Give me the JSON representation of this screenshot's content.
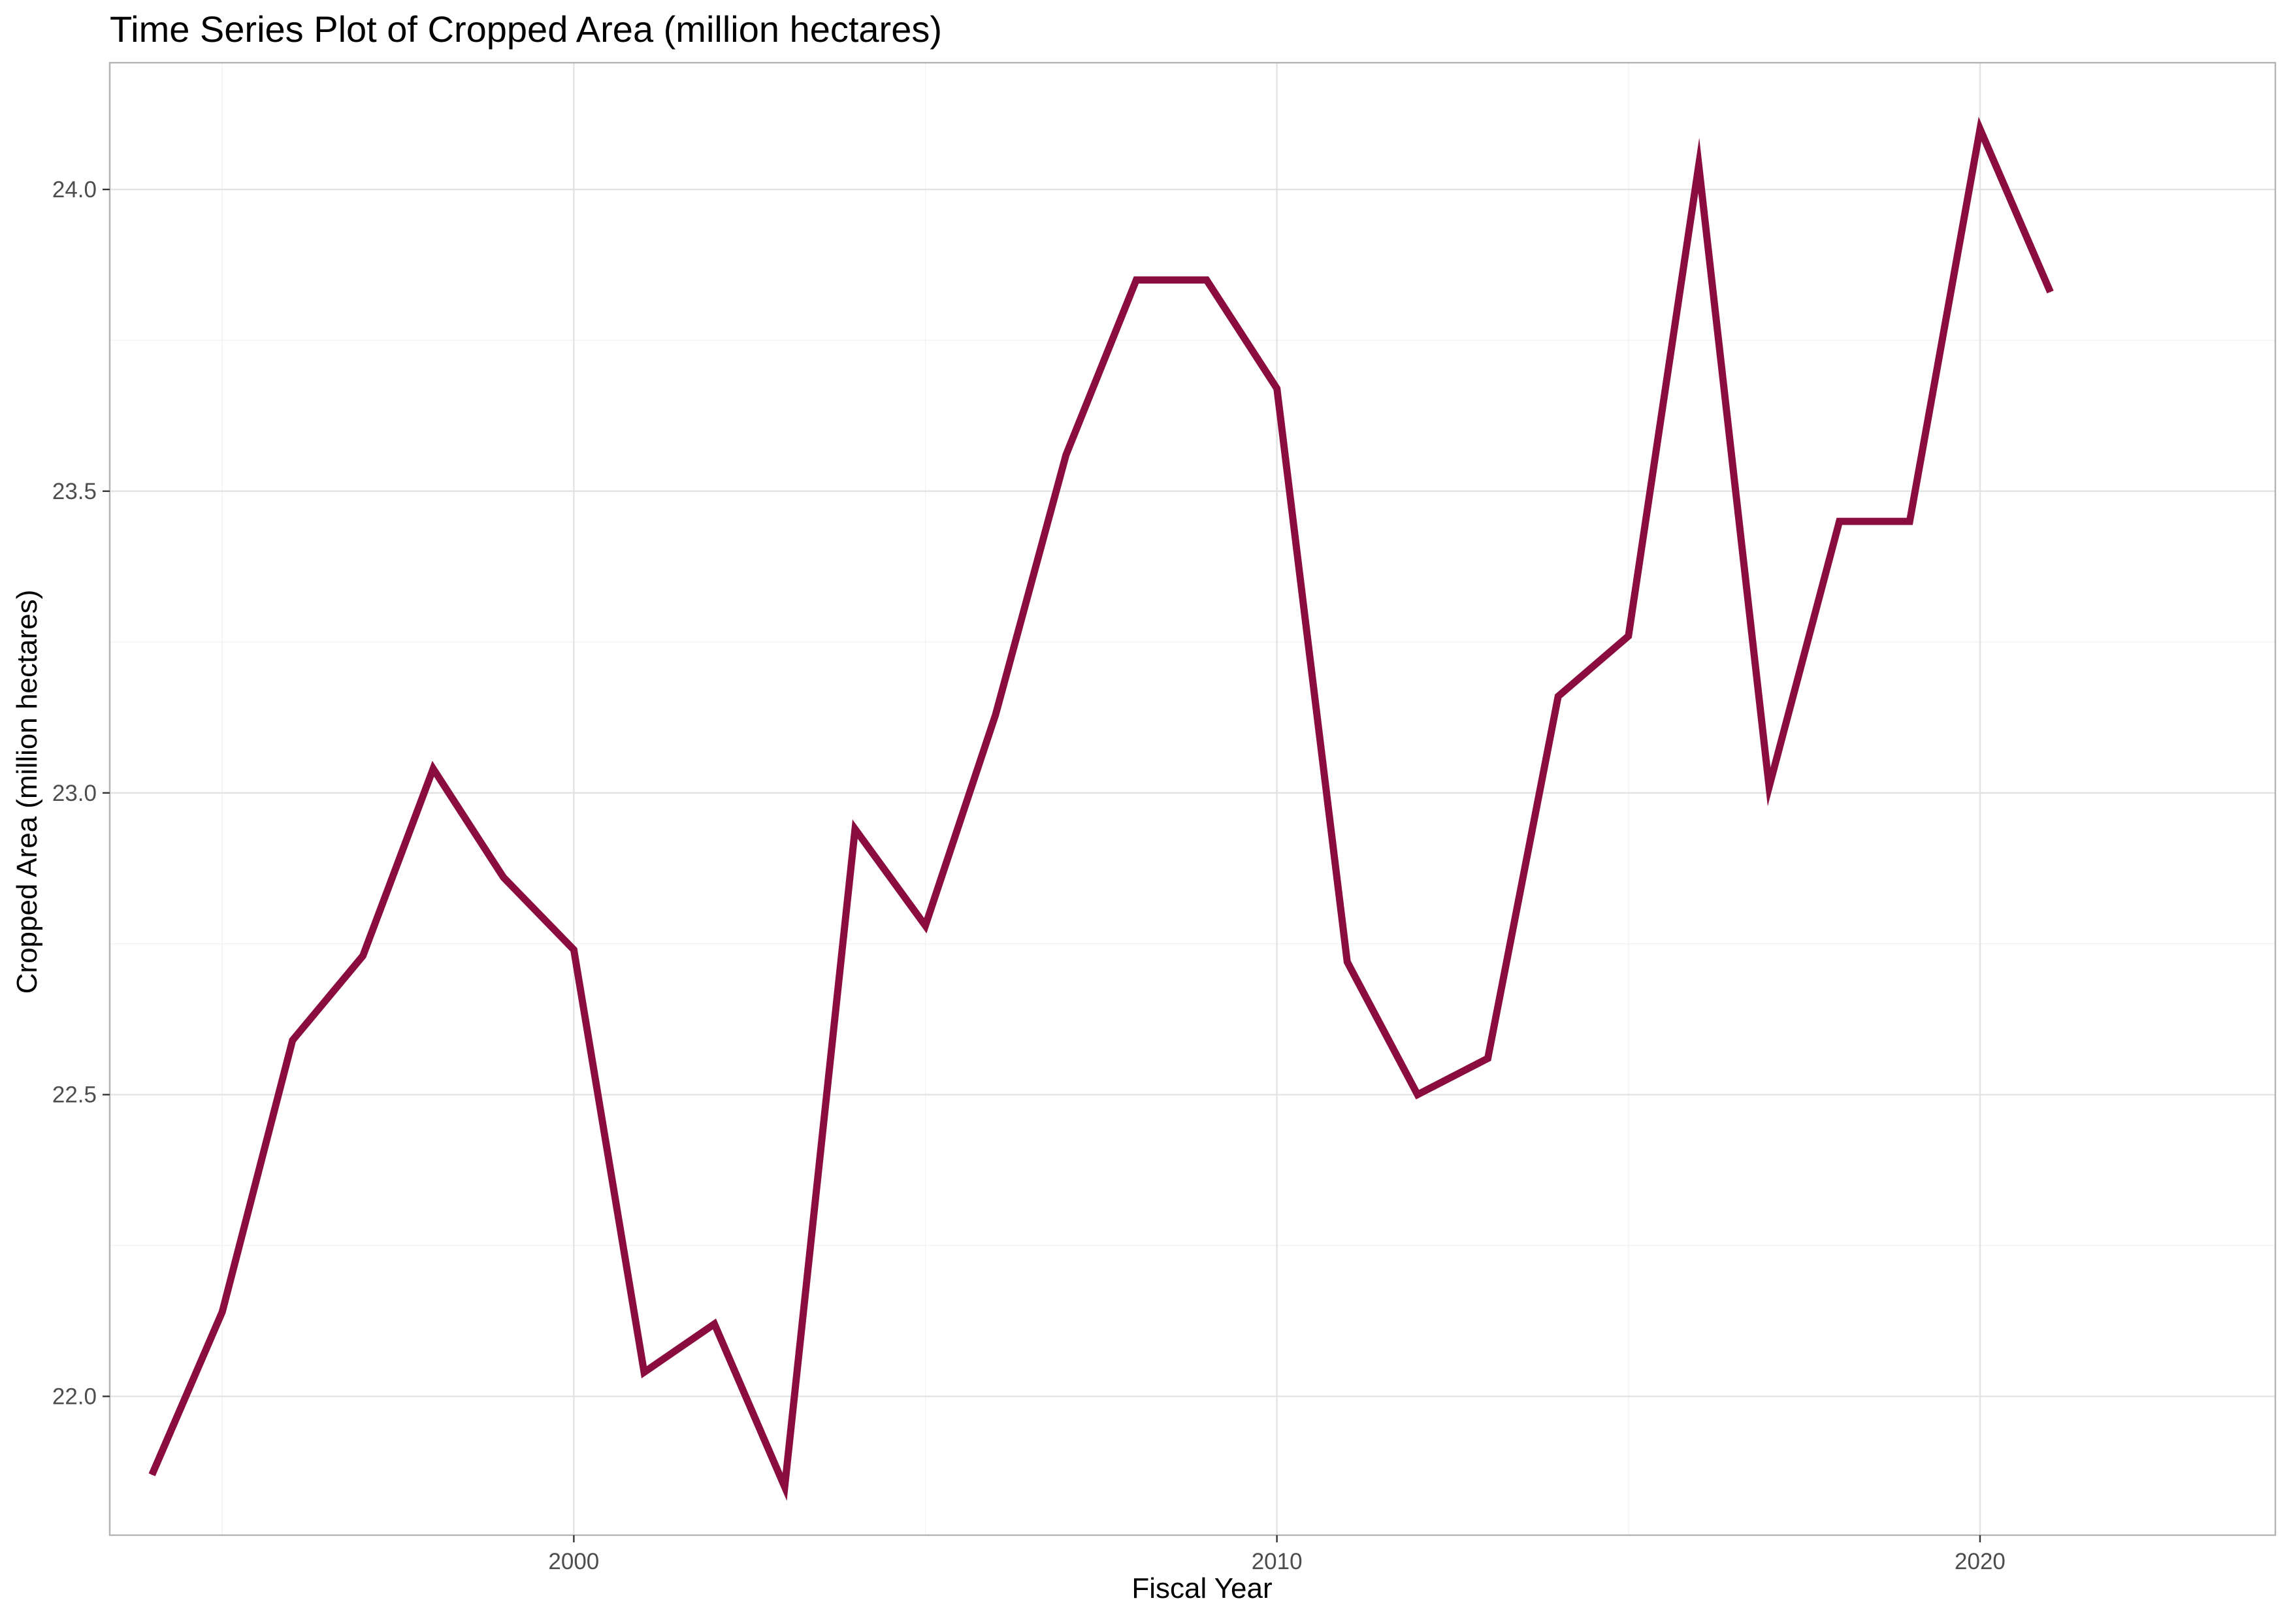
{
  "chart_data": {
    "type": "line",
    "title": "Time Series Plot of Cropped Area (million hectares)",
    "xlabel": "Fiscal Year",
    "ylabel": "Cropped Area (million hectares)",
    "xlim": [
      1993.4,
      2024.2
    ],
    "ylim": [
      21.77,
      24.21
    ],
    "x_ticks": [
      2000,
      2010,
      2020
    ],
    "x_minor_ticks": [
      1995,
      2005,
      2015
    ],
    "y_ticks": [
      22.0,
      22.5,
      23.0,
      23.5,
      24.0
    ],
    "y_tick_labels": [
      "22.0",
      "22.5",
      "23.0",
      "23.5",
      "24.0"
    ],
    "y_minor_ticks": [
      21.75,
      22.25,
      22.75,
      23.25,
      23.75
    ],
    "grid": true,
    "line_color": "#8b0d3f",
    "series": [
      {
        "x": [
          1994,
          1995,
          1996,
          1997,
          1998,
          1999,
          2000,
          2001,
          2002,
          2003,
          2004,
          2005,
          2006,
          2007,
          2008,
          2009,
          2010,
          2011,
          2012,
          2013,
          2014,
          2015,
          2016,
          2017,
          2018,
          2019,
          2020,
          2021
        ],
        "values": [
          21.87,
          22.14,
          22.59,
          22.73,
          23.04,
          22.86,
          22.74,
          22.04,
          22.12,
          21.85,
          22.94,
          22.78,
          23.13,
          23.56,
          23.85,
          23.85,
          23.67,
          22.72,
          22.5,
          22.56,
          23.16,
          23.26,
          24.04,
          23.01,
          23.45,
          23.45,
          24.1,
          23.83
        ]
      }
    ]
  }
}
